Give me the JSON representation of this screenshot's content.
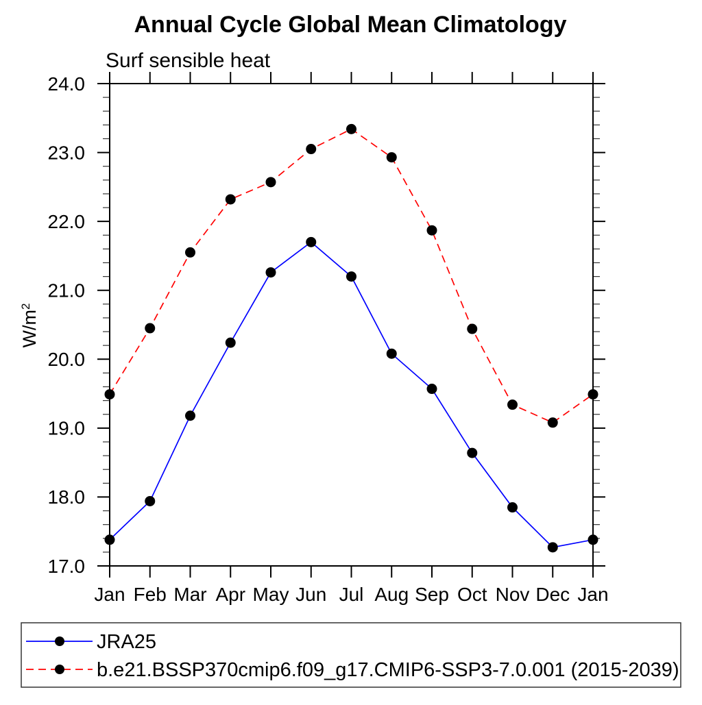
{
  "page": {
    "background": "#ffffff"
  },
  "chart_data": {
    "type": "line",
    "title": "Annual Cycle Global Mean Climatology",
    "subtitle": "Surf sensible heat",
    "ylabel": "W/m²",
    "ylabel_base": "W/m",
    "ylabel_superscript": "2",
    "categories": [
      "Jan",
      "Feb",
      "Mar",
      "Apr",
      "May",
      "Jun",
      "Jul",
      "Aug",
      "Sep",
      "Oct",
      "Nov",
      "Dec",
      "Jan"
    ],
    "ylim": [
      17.0,
      24.0
    ],
    "y_major_tick_step": 1.0,
    "y_minor_tick_step": 0.2,
    "y_tick_labels": [
      "17.0",
      "18.0",
      "19.0",
      "20.0",
      "21.0",
      "22.0",
      "23.0",
      "24.0"
    ],
    "grid": false,
    "legend_position": "bottom-left-box",
    "series": [
      {
        "name": "JRA25",
        "line_color": "#0000ff",
        "line_style": "solid",
        "marker": "filled-circle",
        "marker_color": "#000000",
        "values": [
          17.38,
          17.94,
          19.18,
          20.24,
          21.26,
          21.7,
          21.2,
          20.08,
          19.57,
          18.64,
          17.85,
          17.27,
          17.38
        ]
      },
      {
        "name": "b.e21.BSSP370cmip6.f09_g17.CMIP6-SSP3-7.0.001 (2015-2039)",
        "line_color": "#ff0000",
        "line_style": "dashed",
        "marker": "filled-circle",
        "marker_color": "#000000",
        "values": [
          19.49,
          20.45,
          21.55,
          22.32,
          22.57,
          23.05,
          23.34,
          22.93,
          21.87,
          20.44,
          19.34,
          19.08,
          19.49
        ]
      }
    ]
  }
}
